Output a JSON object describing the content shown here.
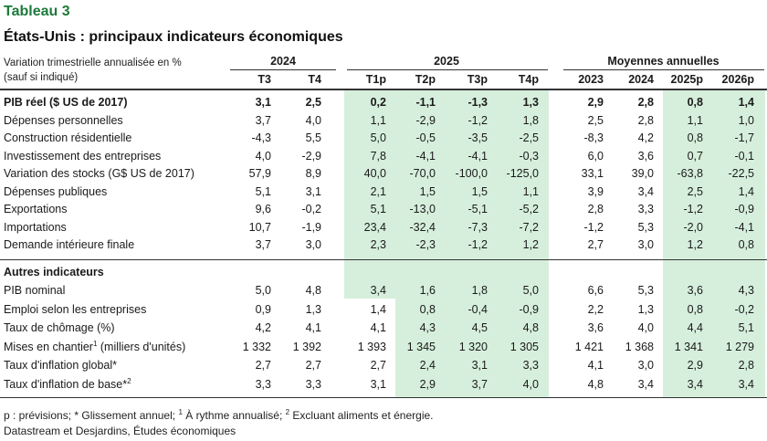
{
  "tableau": "Tableau 3",
  "title": "États-Unis : principaux indicateurs économiques",
  "unit_note_line1": "Variation trimestrielle annualisée en %",
  "unit_note_line2": "(sauf si indiqué)",
  "groups": {
    "y2024": "2024",
    "y2025": "2025",
    "annual": "Moyennes annuelles"
  },
  "columns": [
    "T3",
    "T4",
    "T1p",
    "T2p",
    "T3p",
    "T4p",
    "2023",
    "2024",
    "2025p",
    "2026p"
  ],
  "section2_title": "Autres indicateurs",
  "rows": [
    {
      "label": "PIB réel ($ US de 2017)",
      "bold": true,
      "values": [
        "3,1",
        "2,5",
        "0,2",
        "-1,1",
        "-1,3",
        "1,3",
        "2,9",
        "2,8",
        "0,8",
        "1,4"
      ]
    },
    {
      "label": "Dépenses personnelles",
      "values": [
        "3,7",
        "4,0",
        "1,1",
        "-2,9",
        "-1,2",
        "1,8",
        "2,5",
        "2,8",
        "1,1",
        "1,0"
      ]
    },
    {
      "label": "Construction résidentielle",
      "values": [
        "-4,3",
        "5,5",
        "5,0",
        "-0,5",
        "-3,5",
        "-2,5",
        "-8,3",
        "4,2",
        "0,8",
        "-1,7"
      ]
    },
    {
      "label": "Investissement des entreprises",
      "values": [
        "4,0",
        "-2,9",
        "7,8",
        "-4,1",
        "-4,1",
        "-0,3",
        "6,0",
        "3,6",
        "0,7",
        "-0,1"
      ]
    },
    {
      "label": "Variation des stocks (G$ US de 2017)",
      "values": [
        "57,9",
        "8,9",
        "40,0",
        "-70,0",
        "-100,0",
        "-125,0",
        "33,1",
        "39,0",
        "-63,8",
        "-22,5"
      ]
    },
    {
      "label": "Dépenses publiques",
      "values": [
        "5,1",
        "3,1",
        "2,1",
        "1,5",
        "1,5",
        "1,1",
        "3,9",
        "3,4",
        "2,5",
        "1,4"
      ]
    },
    {
      "label": "Exportations",
      "values": [
        "9,6",
        "-0,2",
        "5,1",
        "-13,0",
        "-5,1",
        "-5,2",
        "2,8",
        "3,3",
        "-1,2",
        "-0,9"
      ]
    },
    {
      "label": "Importations",
      "values": [
        "10,7",
        "-1,9",
        "23,4",
        "-32,4",
        "-7,3",
        "-7,2",
        "-1,2",
        "5,3",
        "-2,0",
        "-4,1"
      ]
    },
    {
      "label": "Demande intérieure finale",
      "values": [
        "3,7",
        "3,0",
        "2,3",
        "-2,3",
        "-1,2",
        "1,2",
        "2,7",
        "3,0",
        "1,2",
        "0,8"
      ]
    }
  ],
  "rows2": [
    {
      "label": "PIB nominal",
      "values": [
        "5,0",
        "4,8",
        "3,4",
        "1,6",
        "1,8",
        "5,0",
        "6,6",
        "5,3",
        "3,6",
        "4,3"
      ]
    },
    {
      "label": "Emploi selon les entreprises",
      "values": [
        "0,9",
        "1,3",
        "1,4",
        "0,8",
        "-0,4",
        "-0,9",
        "2,2",
        "1,3",
        "0,8",
        "-0,2"
      ]
    },
    {
      "label": "Taux de chômage (%)",
      "values": [
        "4,2",
        "4,1",
        "4,1",
        "4,3",
        "4,5",
        "4,8",
        "3,6",
        "4,0",
        "4,4",
        "5,1"
      ]
    },
    {
      "label": "Mises en chantier",
      "sup": "1",
      "label_after": " (milliers d'unités)",
      "values": [
        "1 332",
        "1 392",
        "1 393",
        "1 345",
        "1 320",
        "1 305",
        "1 421",
        "1 368",
        "1 341",
        "1 279"
      ]
    },
    {
      "label": "Taux d'inflation global*",
      "values": [
        "2,7",
        "2,7",
        "2,7",
        "2,4",
        "3,1",
        "3,3",
        "4,1",
        "3,0",
        "2,9",
        "2,8"
      ]
    },
    {
      "label": "Taux d'inflation de base*",
      "sup": "2",
      "label_after": "",
      "values": [
        "3,3",
        "3,3",
        "3,1",
        "2,9",
        "3,7",
        "4,0",
        "4,8",
        "3,4",
        "3,4",
        "3,4"
      ]
    }
  ],
  "footnote_prefix": "p : prévisions; * Glissement annuel; ",
  "footnote_sup1": "1",
  "footnote_mid": " À rythme annualisé; ",
  "footnote_sup2": "2",
  "footnote_suffix": " Excluant aliments et énergie.",
  "source": "Datastream et Desjardins, Études économiques",
  "colors": {
    "accent": "#1d7a3a",
    "shade": "#d6efdc"
  }
}
